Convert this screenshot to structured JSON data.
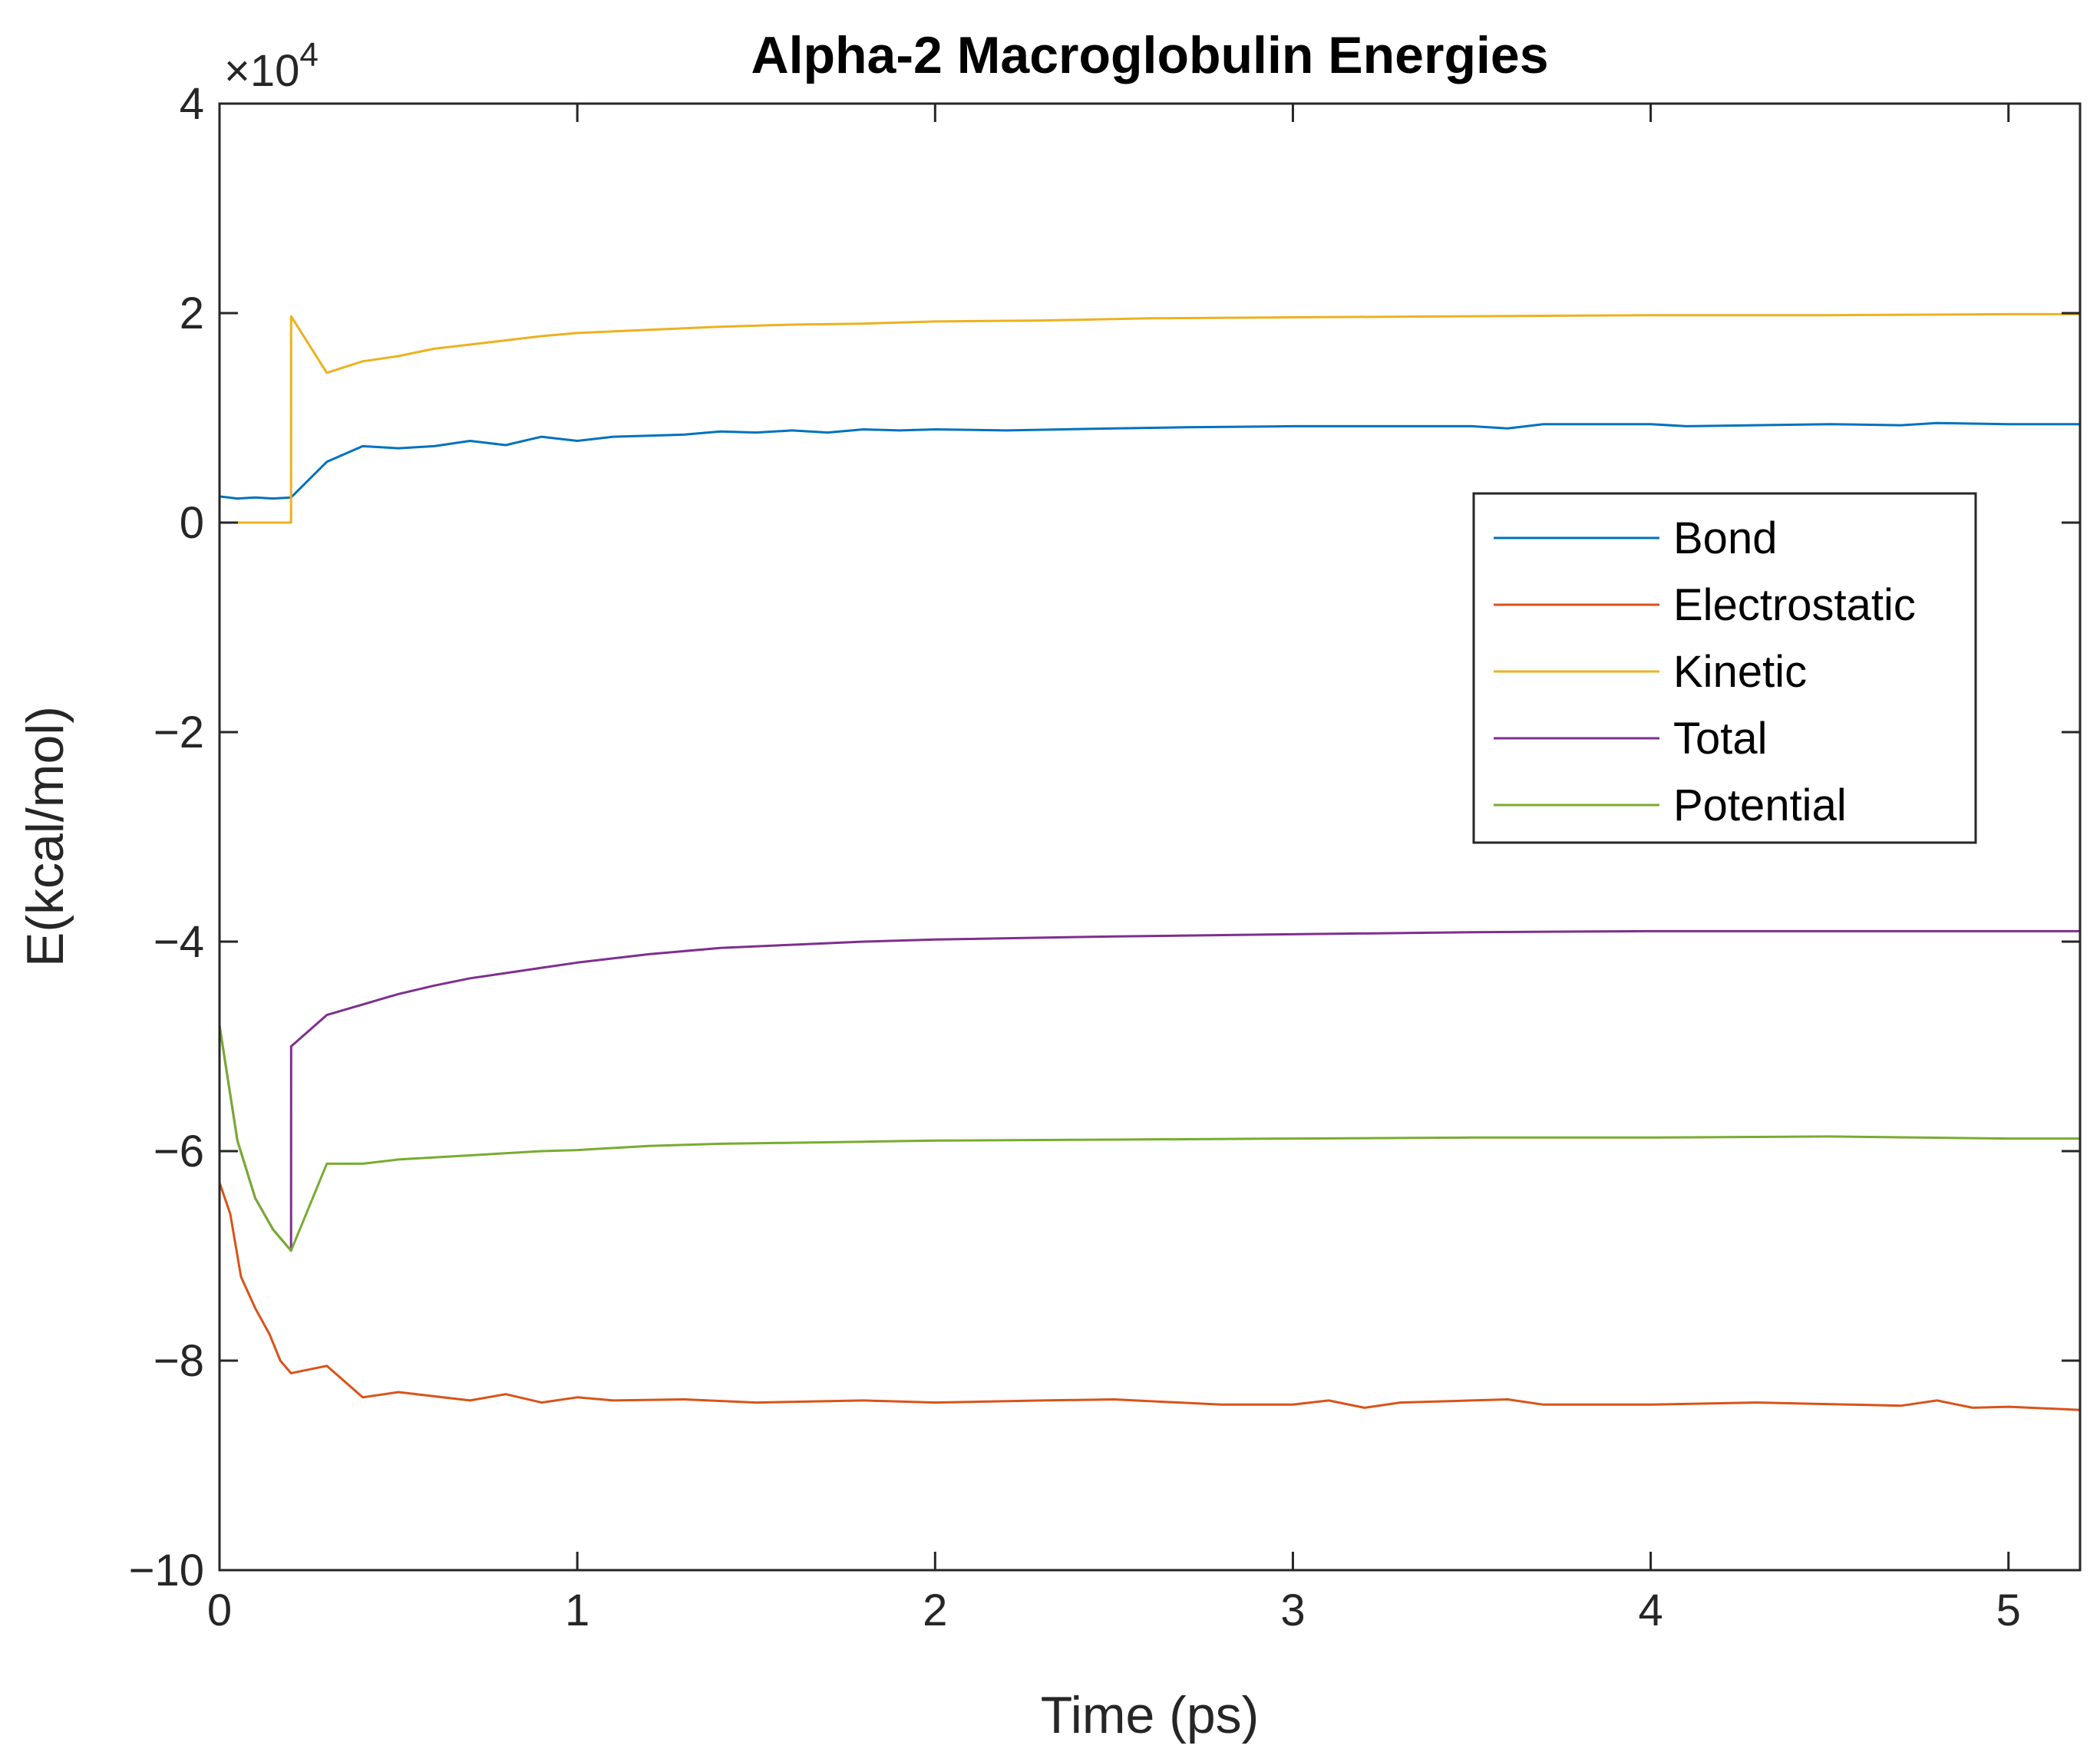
{
  "chart_data": {
    "type": "line",
    "title": "Alpha-2 Macroglobulin Energies",
    "xlabel": "Time (ps)",
    "ylabel": "E(kcal/mol)",
    "exponent_label": "×10",
    "exponent_power": "4",
    "xlim": [
      0,
      5.2
    ],
    "ylim": [
      -10,
      4
    ],
    "y_scale": 10000,
    "xticks": [
      0,
      1,
      2,
      3,
      4,
      5
    ],
    "xtick_labels": [
      "0",
      "1",
      "2",
      "3",
      "4",
      "5"
    ],
    "yticks": [
      -10,
      -8,
      -6,
      -4,
      -2,
      0,
      2,
      4
    ],
    "ytick_labels": [
      "−10",
      "−8",
      "−6",
      "−4",
      "−2",
      "0",
      "2",
      "4"
    ],
    "legend_position": "right, mid-upper",
    "series": [
      {
        "name": "Bond",
        "color": "#0072BD",
        "x": [
          0,
          0.05,
          0.1,
          0.15,
          0.2,
          0.3,
          0.4,
          0.5,
          0.6,
          0.7,
          0.8,
          0.9,
          1.0,
          1.1,
          1.2,
          1.3,
          1.4,
          1.5,
          1.6,
          1.7,
          1.8,
          1.9,
          2.0,
          2.2,
          2.5,
          2.7,
          3.0,
          3.5,
          3.6,
          3.7,
          4.0,
          4.1,
          4.5,
          4.7,
          4.8,
          5.0,
          5.2
        ],
        "y": [
          0.25,
          0.23,
          0.24,
          0.23,
          0.24,
          0.58,
          0.73,
          0.71,
          0.73,
          0.78,
          0.74,
          0.82,
          0.78,
          0.82,
          0.83,
          0.84,
          0.87,
          0.86,
          0.88,
          0.86,
          0.89,
          0.88,
          0.89,
          0.88,
          0.9,
          0.91,
          0.92,
          0.92,
          0.9,
          0.94,
          0.94,
          0.92,
          0.94,
          0.93,
          0.95,
          0.94,
          0.94
        ]
      },
      {
        "name": "Electrostatic",
        "color": "#D95319",
        "x": [
          0,
          0.03,
          0.06,
          0.1,
          0.14,
          0.17,
          0.2,
          0.3,
          0.4,
          0.5,
          0.7,
          0.8,
          0.9,
          1.0,
          1.1,
          1.3,
          1.5,
          1.8,
          2.0,
          2.3,
          2.5,
          2.8,
          3.0,
          3.1,
          3.2,
          3.3,
          3.6,
          3.7,
          4.0,
          4.3,
          4.7,
          4.8,
          4.9,
          5.0,
          5.2
        ],
        "y": [
          -6.3,
          -6.6,
          -7.2,
          -7.5,
          -7.75,
          -8.0,
          -8.12,
          -8.05,
          -8.35,
          -8.3,
          -8.38,
          -8.32,
          -8.4,
          -8.35,
          -8.38,
          -8.37,
          -8.4,
          -8.38,
          -8.4,
          -8.38,
          -8.37,
          -8.42,
          -8.42,
          -8.38,
          -8.45,
          -8.4,
          -8.37,
          -8.42,
          -8.42,
          -8.4,
          -8.43,
          -8.38,
          -8.45,
          -8.44,
          -8.47
        ]
      },
      {
        "name": "Kinetic",
        "color": "#EDB120",
        "x": [
          0,
          0.1,
          0.2,
          0.2001,
          0.3,
          0.4,
          0.5,
          0.6,
          0.7,
          0.8,
          0.9,
          1.0,
          1.2,
          1.4,
          1.6,
          1.8,
          2.0,
          2.3,
          2.6,
          3.0,
          3.5,
          4.0,
          4.5,
          5.0,
          5.2
        ],
        "y": [
          0,
          0,
          0,
          1.97,
          1.43,
          1.54,
          1.59,
          1.66,
          1.7,
          1.74,
          1.78,
          1.81,
          1.84,
          1.87,
          1.89,
          1.9,
          1.92,
          1.93,
          1.95,
          1.96,
          1.97,
          1.98,
          1.98,
          1.99,
          1.99
        ]
      },
      {
        "name": "Total",
        "color": "#7E2F8E",
        "x": [
          0,
          0.05,
          0.1,
          0.15,
          0.2,
          0.2001,
          0.3,
          0.4,
          0.5,
          0.6,
          0.7,
          0.8,
          0.9,
          1.0,
          1.2,
          1.4,
          1.6,
          1.8,
          2.0,
          2.5,
          3.0,
          3.5,
          4.0,
          4.5,
          5.0,
          5.2
        ],
        "y": [
          -4.8,
          -5.9,
          -6.45,
          -6.75,
          -6.95,
          -5.0,
          -4.7,
          -4.6,
          -4.5,
          -4.42,
          -4.35,
          -4.3,
          -4.25,
          -4.2,
          -4.12,
          -4.06,
          -4.03,
          -4.0,
          -3.98,
          -3.95,
          -3.93,
          -3.91,
          -3.9,
          -3.9,
          -3.9,
          -3.9
        ]
      },
      {
        "name": "Potential",
        "color": "#77AC30",
        "x": [
          0,
          0.05,
          0.1,
          0.15,
          0.2,
          0.3,
          0.4,
          0.5,
          0.7,
          0.9,
          1.0,
          1.2,
          1.4,
          1.6,
          1.8,
          2.0,
          2.5,
          3.0,
          3.5,
          4.0,
          4.5,
          5.0,
          5.2
        ],
        "y": [
          -4.8,
          -5.9,
          -6.45,
          -6.75,
          -6.95,
          -6.12,
          -6.12,
          -6.08,
          -6.04,
          -6.0,
          -5.99,
          -5.95,
          -5.93,
          -5.92,
          -5.91,
          -5.9,
          -5.89,
          -5.88,
          -5.87,
          -5.87,
          -5.86,
          -5.88,
          -5.88
        ]
      }
    ]
  }
}
